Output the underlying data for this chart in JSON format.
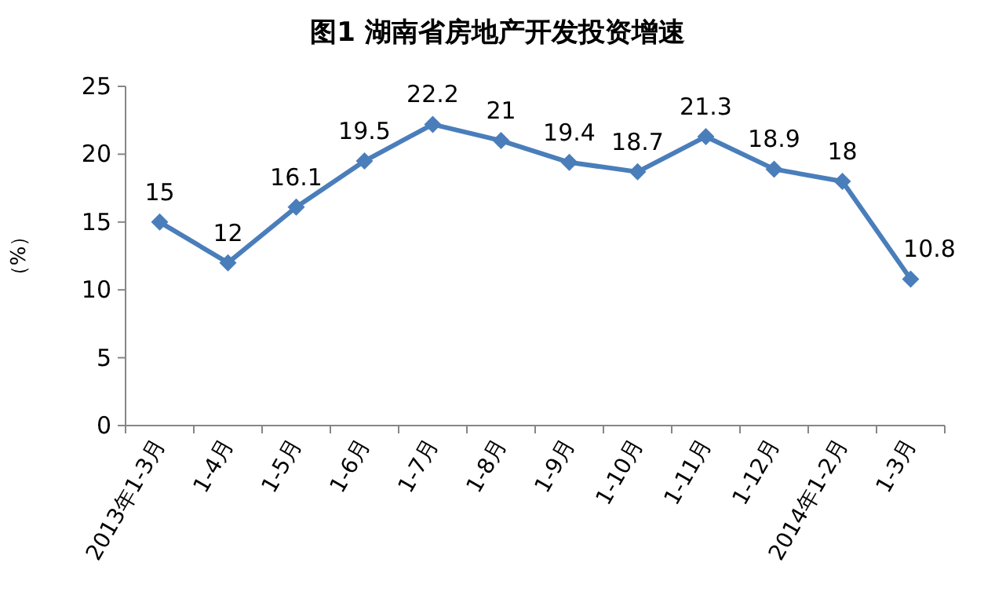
{
  "chart_data": {
    "type": "line",
    "title": "图1  湖南省房地产开发投资增速",
    "ylabel": "（%）",
    "categories": [
      "2013年1-3月",
      "1-4月",
      "1-5月",
      "1-6月",
      "1-7月",
      "1-8月",
      "1-9月",
      "1-10月",
      "1-11月",
      "1-12月",
      "2014年1-2月",
      "1-3月"
    ],
    "series": [
      {
        "color": "#4a7ebb",
        "values": [
          15,
          12,
          16.1,
          19.5,
          22.2,
          21,
          19.4,
          18.7,
          21.3,
          18.9,
          18,
          10.8
        ]
      }
    ],
    "ylim": [
      0,
      25
    ],
    "yticks": [
      0,
      5,
      10,
      15,
      20,
      25
    ],
    "marker": "diamond",
    "line_style": "solid",
    "data_labels": true
  }
}
